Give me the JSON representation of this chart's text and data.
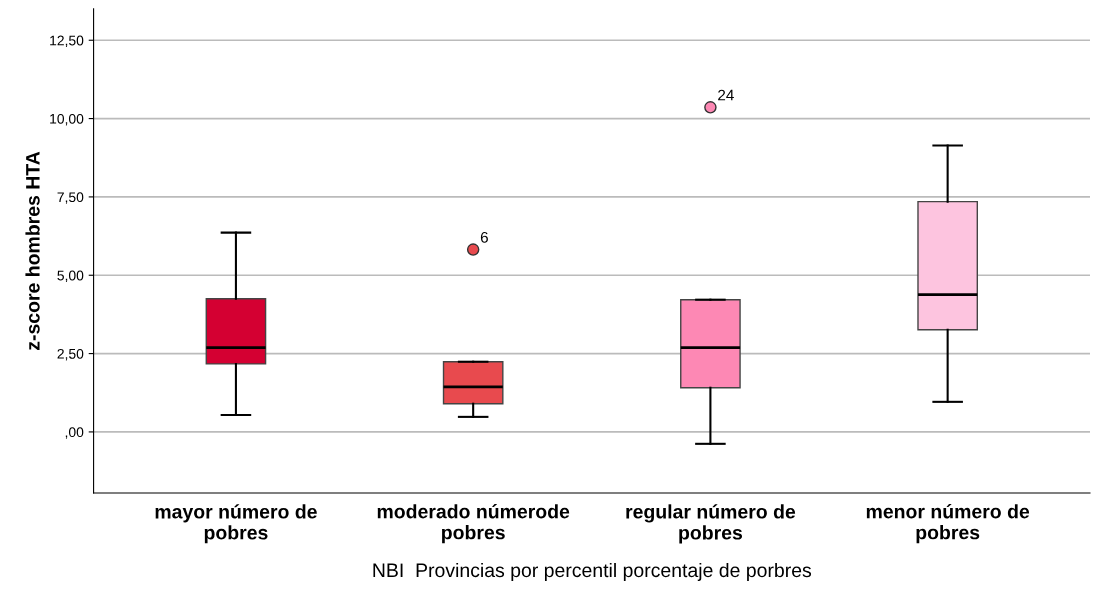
{
  "chart_data": {
    "type": "box",
    "xlabel": "NBI  Provincias por percentil porcentaje de porbres",
    "ylabel": "z-score hombres HTA",
    "categories": [
      "mayor número de\npobres",
      "moderado númerode\npobres",
      "regular número de\npobres",
      "menor número de\npobres"
    ],
    "colors": [
      "#d40032",
      "#e84a4e",
      "#fd88b4",
      "#fdc4df"
    ],
    "boxes": [
      {
        "low": 0.54,
        "q1": 2.17,
        "median": 2.69,
        "q3": 4.25,
        "high": 6.36
      },
      {
        "low": 0.48,
        "q1": 0.9,
        "median": 1.44,
        "q3": 2.24,
        "high": 2.24,
        "outliers": [
          5.82
        ]
      },
      {
        "low": -0.38,
        "q1": 1.41,
        "median": 2.69,
        "q3": 4.22,
        "high": 4.22,
        "outliers": [
          10.36
        ]
      },
      {
        "low": 0.96,
        "q1": 3.26,
        "median": 4.38,
        "q3": 7.35,
        "high": 9.14
      }
    ],
    "annotations": [
      "6",
      "24"
    ],
    "ylim": [
      -1.95,
      13.5
    ],
    "yticks": [
      {
        "value": 0,
        "label": ",00"
      },
      {
        "value": 2.5,
        "label": "2,50"
      },
      {
        "value": 5,
        "label": "5,00"
      },
      {
        "value": 7.5,
        "label": "7,50"
      },
      {
        "value": 10,
        "label": "10,00"
      },
      {
        "value": 12.5,
        "label": "12,50"
      }
    ],
    "grid": "y"
  }
}
